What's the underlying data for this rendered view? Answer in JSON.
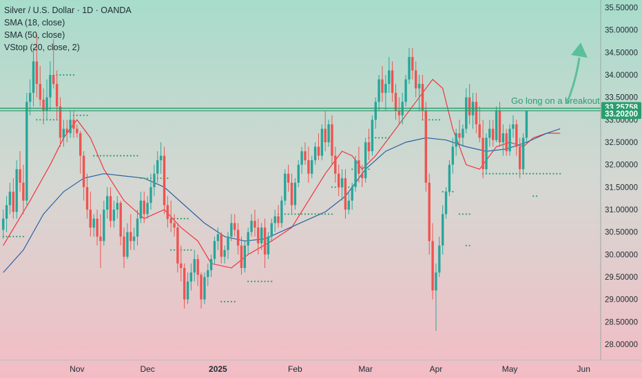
{
  "legend": {
    "title": "Silver / U.S. Dollar · 1D · OANDA",
    "indicators": [
      "SMA (18, close)",
      "SMA (50, close)",
      "VStop (20, close, 2)"
    ]
  },
  "chart_data": {
    "type": "candlestick",
    "symbol": "Silver / U.S. Dollar",
    "interval": "1D",
    "source": "OANDA",
    "ylim": [
      27.7,
      35.7
    ],
    "yticks": [
      "35.50000",
      "35.00000",
      "34.50000",
      "34.00000",
      "33.50000",
      "33.00000",
      "32.50000",
      "32.00000",
      "31.50000",
      "31.00000",
      "30.50000",
      "30.00000",
      "29.50000",
      "29.00000",
      "28.50000",
      "28.00000"
    ],
    "xticks": [
      {
        "label": "Nov",
        "date": "2024-11-01",
        "index": 22
      },
      {
        "label": "Dec",
        "date": "2024-12-02",
        "index": 43
      },
      {
        "label": "2025",
        "date": "2025-01-01",
        "index": 64
      },
      {
        "label": "Feb",
        "date": "2025-02-03",
        "index": 87
      },
      {
        "label": "Mar",
        "date": "2025-03-03",
        "index": 108
      },
      {
        "label": "Apr",
        "date": "2025-04-01",
        "index": 129
      },
      {
        "label": "May",
        "date": "2025-05-01",
        "index": 151
      },
      {
        "label": "Jun",
        "date": "2025-06-02",
        "index": 173
      }
    ],
    "candles": [
      [
        30.55,
        31.0,
        30.35,
        30.8
      ],
      [
        30.8,
        31.3,
        30.5,
        31.1
      ],
      [
        31.1,
        31.6,
        30.9,
        31.4
      ],
      [
        31.4,
        31.7,
        30.8,
        30.95
      ],
      [
        30.95,
        32.1,
        30.8,
        31.9
      ],
      [
        31.9,
        32.3,
        31.4,
        31.6
      ],
      [
        31.6,
        32.0,
        30.9,
        31.2
      ],
      [
        31.2,
        33.6,
        31.1,
        33.4
      ],
      [
        33.4,
        33.9,
        33.1,
        33.6
      ],
      [
        33.6,
        34.6,
        33.3,
        34.3
      ],
      [
        34.3,
        34.9,
        33.5,
        33.8
      ],
      [
        33.8,
        34.2,
        33.3,
        33.45
      ],
      [
        33.45,
        33.7,
        32.9,
        33.2
      ],
      [
        33.2,
        33.9,
        33.0,
        33.5
      ],
      [
        33.5,
        34.3,
        33.2,
        34.0
      ],
      [
        34.0,
        34.8,
        33.7,
        33.8
      ],
      [
        33.8,
        34.1,
        33.0,
        33.3
      ],
      [
        33.3,
        33.5,
        32.4,
        32.6
      ],
      [
        32.6,
        33.0,
        32.4,
        32.8
      ],
      [
        32.8,
        33.0,
        32.5,
        32.7
      ],
      [
        32.7,
        33.2,
        32.6,
        33.0
      ],
      [
        33.0,
        33.2,
        32.6,
        32.8
      ],
      [
        32.8,
        32.9,
        32.6,
        32.7
      ],
      [
        32.7,
        32.75,
        31.8,
        32.2
      ],
      [
        32.2,
        32.3,
        31.2,
        31.5
      ],
      [
        31.5,
        31.8,
        30.8,
        31.0
      ],
      [
        31.0,
        31.4,
        30.4,
        30.6
      ],
      [
        30.6,
        30.9,
        30.4,
        30.8
      ],
      [
        30.8,
        31.0,
        30.2,
        30.4
      ],
      [
        30.4,
        30.9,
        29.7,
        30.3
      ],
      [
        30.3,
        31.2,
        30.2,
        31.0
      ],
      [
        31.0,
        31.5,
        30.8,
        31.3
      ],
      [
        31.3,
        31.5,
        30.6,
        30.75
      ],
      [
        30.75,
        31.2,
        30.6,
        31.0
      ],
      [
        31.0,
        31.3,
        30.8,
        31.15
      ],
      [
        31.15,
        31.2,
        30.2,
        30.4
      ],
      [
        30.4,
        30.6,
        29.7,
        29.95
      ],
      [
        29.95,
        30.7,
        29.9,
        30.5
      ],
      [
        30.5,
        30.9,
        30.1,
        30.3
      ],
      [
        30.3,
        30.6,
        30.1,
        30.4
      ],
      [
        30.4,
        31.0,
        30.2,
        30.8
      ],
      [
        30.8,
        31.4,
        30.7,
        31.2
      ],
      [
        31.2,
        31.4,
        30.7,
        30.9
      ],
      [
        30.9,
        31.3,
        30.8,
        31.15
      ],
      [
        31.15,
        31.8,
        31.0,
        31.5
      ],
      [
        31.5,
        32.0,
        31.3,
        31.8
      ],
      [
        31.8,
        32.3,
        31.6,
        32.1
      ],
      [
        32.1,
        32.5,
        31.8,
        32.2
      ],
      [
        32.2,
        32.4,
        30.9,
        31.1
      ],
      [
        31.1,
        31.3,
        30.6,
        30.8
      ],
      [
        30.8,
        31.2,
        30.5,
        30.7
      ],
      [
        30.7,
        30.9,
        30.4,
        30.6
      ],
      [
        30.6,
        30.7,
        29.6,
        29.8
      ],
      [
        29.8,
        30.2,
        29.4,
        29.7
      ],
      [
        29.7,
        29.8,
        28.8,
        29.0
      ],
      [
        29.0,
        29.6,
        28.9,
        29.4
      ],
      [
        29.4,
        29.8,
        29.2,
        29.6
      ],
      [
        29.6,
        30.1,
        29.4,
        29.9
      ],
      [
        29.9,
        30.0,
        29.3,
        29.55
      ],
      [
        29.55,
        29.6,
        28.8,
        29.0
      ],
      [
        29.0,
        29.6,
        28.9,
        29.5
      ],
      [
        29.5,
        29.8,
        29.3,
        29.65
      ],
      [
        29.65,
        30.0,
        29.5,
        29.9
      ],
      [
        29.9,
        30.4,
        29.8,
        30.3
      ],
      [
        30.3,
        30.6,
        30.1,
        30.45
      ],
      [
        30.45,
        30.5,
        29.8,
        29.95
      ],
      [
        29.95,
        30.2,
        29.8,
        30.1
      ],
      [
        30.1,
        30.5,
        29.9,
        30.4
      ],
      [
        30.4,
        30.9,
        30.3,
        30.7
      ],
      [
        30.7,
        30.9,
        30.4,
        30.55
      ],
      [
        30.55,
        30.7,
        30.0,
        30.2
      ],
      [
        30.2,
        30.4,
        29.55,
        29.7
      ],
      [
        29.7,
        30.3,
        29.6,
        30.2
      ],
      [
        30.2,
        30.6,
        30.0,
        30.5
      ],
      [
        30.5,
        30.9,
        30.4,
        30.75
      ],
      [
        30.75,
        31.0,
        30.4,
        30.6
      ],
      [
        30.6,
        30.8,
        30.0,
        30.25
      ],
      [
        30.25,
        30.7,
        30.1,
        30.6
      ],
      [
        30.6,
        30.8,
        29.7,
        30.0
      ],
      [
        30.0,
        30.5,
        29.9,
        30.4
      ],
      [
        30.4,
        30.8,
        30.3,
        30.7
      ],
      [
        30.7,
        31.0,
        30.5,
        30.85
      ],
      [
        30.85,
        31.1,
        30.6,
        30.7
      ],
      [
        30.7,
        31.3,
        30.6,
        31.2
      ],
      [
        31.2,
        31.9,
        31.1,
        31.8
      ],
      [
        31.8,
        32.0,
        31.4,
        31.6
      ],
      [
        31.6,
        31.8,
        30.9,
        31.1
      ],
      [
        31.1,
        31.7,
        31.0,
        31.6
      ],
      [
        31.6,
        32.1,
        31.5,
        32.0
      ],
      [
        32.0,
        32.4,
        31.8,
        32.3
      ],
      [
        32.3,
        32.5,
        32.0,
        32.1
      ],
      [
        32.1,
        32.4,
        31.6,
        31.8
      ],
      [
        31.8,
        32.2,
        31.7,
        32.1
      ],
      [
        32.1,
        32.5,
        32.0,
        32.4
      ],
      [
        32.4,
        32.7,
        32.1,
        32.2
      ],
      [
        32.2,
        32.9,
        32.1,
        32.8
      ],
      [
        32.8,
        33.2,
        32.3,
        32.5
      ],
      [
        32.5,
        33.0,
        32.4,
        32.9
      ],
      [
        32.9,
        33.1,
        32.0,
        32.2
      ],
      [
        32.2,
        32.4,
        31.6,
        31.8
      ],
      [
        31.8,
        32.0,
        31.3,
        31.5
      ],
      [
        31.5,
        31.9,
        31.2,
        31.7
      ],
      [
        31.7,
        31.9,
        30.8,
        31.0
      ],
      [
        31.0,
        31.4,
        30.9,
        31.2
      ],
      [
        31.2,
        31.6,
        31.0,
        31.5
      ],
      [
        31.5,
        32.2,
        31.4,
        32.1
      ],
      [
        32.1,
        32.4,
        31.6,
        31.8
      ],
      [
        31.8,
        32.0,
        31.5,
        31.7
      ],
      [
        31.7,
        32.6,
        31.6,
        32.5
      ],
      [
        32.5,
        32.8,
        32.1,
        32.3
      ],
      [
        32.3,
        33.1,
        32.2,
        33.0
      ],
      [
        33.0,
        33.5,
        32.8,
        33.4
      ],
      [
        33.4,
        34.0,
        33.2,
        33.9
      ],
      [
        33.9,
        34.2,
        33.4,
        33.6
      ],
      [
        33.6,
        34.0,
        33.2,
        33.8
      ],
      [
        33.8,
        34.4,
        33.6,
        34.1
      ],
      [
        34.1,
        34.3,
        33.4,
        33.6
      ],
      [
        33.6,
        33.8,
        33.0,
        33.2
      ],
      [
        33.2,
        33.5,
        32.9,
        33.1
      ],
      [
        33.1,
        33.6,
        32.9,
        33.4
      ],
      [
        33.4,
        34.0,
        33.3,
        33.9
      ],
      [
        33.9,
        34.6,
        33.8,
        34.4
      ],
      [
        34.4,
        34.6,
        33.9,
        34.1
      ],
      [
        34.1,
        34.3,
        33.5,
        33.7
      ],
      [
        33.7,
        34.0,
        33.2,
        33.8
      ],
      [
        33.8,
        34.0,
        33.0,
        33.2
      ],
      [
        33.2,
        33.4,
        31.4,
        31.6
      ],
      [
        31.6,
        31.8,
        30.0,
        30.3
      ],
      [
        30.3,
        30.7,
        29.0,
        29.2
      ],
      [
        29.2,
        29.8,
        28.3,
        29.6
      ],
      [
        29.6,
        30.4,
        29.5,
        30.2
      ],
      [
        30.2,
        31.1,
        30.0,
        30.9
      ],
      [
        30.9,
        31.5,
        30.8,
        31.4
      ],
      [
        31.4,
        32.1,
        31.3,
        32.0
      ],
      [
        32.0,
        32.6,
        31.8,
        32.4
      ],
      [
        32.4,
        32.8,
        32.2,
        32.7
      ],
      [
        32.7,
        33.0,
        32.4,
        32.6
      ],
      [
        32.6,
        32.9,
        32.4,
        32.8
      ],
      [
        32.8,
        33.7,
        32.7,
        33.5
      ],
      [
        33.5,
        33.8,
        32.9,
        33.1
      ],
      [
        33.1,
        33.6,
        32.8,
        33.4
      ],
      [
        33.4,
        33.6,
        32.7,
        32.9
      ],
      [
        32.9,
        33.3,
        32.5,
        32.6
      ],
      [
        32.6,
        33.0,
        31.7,
        31.9
      ],
      [
        31.9,
        32.7,
        31.8,
        32.6
      ],
      [
        32.6,
        33.0,
        32.4,
        32.8
      ],
      [
        32.8,
        33.0,
        32.4,
        32.55
      ],
      [
        32.55,
        33.3,
        32.5,
        33.2
      ],
      [
        33.2,
        33.4,
        32.4,
        32.5
      ],
      [
        32.5,
        32.9,
        32.2,
        32.7
      ],
      [
        32.7,
        32.8,
        32.2,
        32.3
      ],
      [
        32.3,
        32.9,
        32.2,
        32.8
      ],
      [
        32.8,
        33.1,
        32.6,
        32.9
      ],
      [
        32.9,
        33.0,
        32.2,
        32.4
      ],
      [
        32.4,
        32.6,
        31.7,
        31.9
      ],
      [
        31.9,
        32.7,
        31.8,
        32.6
      ],
      [
        32.6,
        33.2,
        32.5,
        33.2
      ]
    ],
    "series": [
      {
        "name": "SMA (18, close)",
        "color": "#f2323f",
        "points": [
          [
            0,
            30.2
          ],
          [
            8,
            31.2
          ],
          [
            14,
            32.0
          ],
          [
            18,
            32.6
          ],
          [
            22,
            33.0
          ],
          [
            26,
            32.6
          ],
          [
            30,
            31.9
          ],
          [
            36,
            31.2
          ],
          [
            42,
            30.8
          ],
          [
            48,
            31.0
          ],
          [
            53,
            30.6
          ],
          [
            58,
            30.3
          ],
          [
            62,
            29.8
          ],
          [
            68,
            29.7
          ],
          [
            73,
            30.0
          ],
          [
            80,
            30.3
          ],
          [
            86,
            30.6
          ],
          [
            91,
            31.2
          ],
          [
            96,
            31.8
          ],
          [
            101,
            32.3
          ],
          [
            104,
            32.2
          ],
          [
            107,
            31.9
          ],
          [
            111,
            32.2
          ],
          [
            115,
            32.6
          ],
          [
            120,
            33.1
          ],
          [
            124,
            33.5
          ],
          [
            128,
            33.9
          ],
          [
            131,
            33.7
          ],
          [
            134,
            32.8
          ],
          [
            138,
            32.0
          ],
          [
            142,
            31.9
          ],
          [
            147,
            32.4
          ],
          [
            151,
            32.5
          ],
          [
            155,
            32.4
          ],
          [
            158,
            32.6
          ],
          [
            162,
            32.7
          ],
          [
            166,
            32.7
          ]
        ]
      },
      {
        "name": "SMA (50, close)",
        "color": "#2a60a3",
        "points": [
          [
            0,
            29.6
          ],
          [
            6,
            30.1
          ],
          [
            12,
            30.9
          ],
          [
            18,
            31.4
          ],
          [
            24,
            31.7
          ],
          [
            30,
            31.8
          ],
          [
            36,
            31.75
          ],
          [
            42,
            31.7
          ],
          [
            48,
            31.5
          ],
          [
            54,
            31.1
          ],
          [
            60,
            30.7
          ],
          [
            66,
            30.4
          ],
          [
            72,
            30.3
          ],
          [
            78,
            30.35
          ],
          [
            84,
            30.55
          ],
          [
            90,
            30.75
          ],
          [
            96,
            30.95
          ],
          [
            102,
            31.3
          ],
          [
            108,
            31.9
          ],
          [
            114,
            32.3
          ],
          [
            120,
            32.5
          ],
          [
            126,
            32.6
          ],
          [
            132,
            32.55
          ],
          [
            138,
            32.4
          ],
          [
            144,
            32.3
          ],
          [
            150,
            32.35
          ],
          [
            156,
            32.5
          ],
          [
            162,
            32.7
          ],
          [
            166,
            32.8
          ]
        ]
      },
      {
        "name": "VStop (20, close, 2)",
        "color": "#2a9d6e",
        "style": "dots",
        "segments": [
          {
            "from": 0,
            "to": 6,
            "value": 30.4
          },
          {
            "from": 10,
            "to": 17,
            "value": 33.0
          },
          {
            "from": 16,
            "to": 21,
            "value": 34.0
          },
          {
            "from": 21,
            "to": 25,
            "value": 33.1
          },
          {
            "from": 27,
            "to": 40,
            "value": 32.2
          },
          {
            "from": 41,
            "to": 49,
            "value": 31.7
          },
          {
            "from": 49,
            "to": 55,
            "value": 30.8
          },
          {
            "from": 50,
            "to": 56,
            "value": 30.1
          },
          {
            "from": 65,
            "to": 69,
            "value": 28.95
          },
          {
            "from": 73,
            "to": 80,
            "value": 29.4
          },
          {
            "from": 82,
            "to": 98,
            "value": 30.9
          },
          {
            "from": 98,
            "to": 104,
            "value": 31.5
          },
          {
            "from": 104,
            "to": 109,
            "value": 31.9
          },
          {
            "from": 109,
            "to": 115,
            "value": 32.6
          },
          {
            "from": 125,
            "to": 130,
            "value": 33.0
          },
          {
            "from": 131,
            "to": 134,
            "value": 31.4
          },
          {
            "from": 136,
            "to": 139,
            "value": 30.9
          },
          {
            "from": 138,
            "to": 139,
            "value": 30.2
          },
          {
            "from": 143,
            "to": 166,
            "value": 31.8
          },
          {
            "from": 158,
            "to": 159,
            "value": 31.3
          }
        ]
      }
    ],
    "lines": [
      {
        "price": 33.25758,
        "label": "33.25758",
        "color": "#2a9d6e"
      },
      {
        "price": 33.202,
        "label": "33.20200",
        "color": "#2a9d6e"
      }
    ],
    "annotation": {
      "text": "Go long on a breakout",
      "color": "#2a9d6e"
    },
    "colors": {
      "up": "#26a69a",
      "down": "#ef5350",
      "bg_top": "#a7dccb",
      "bg_bottom": "#f3bcc4"
    }
  }
}
